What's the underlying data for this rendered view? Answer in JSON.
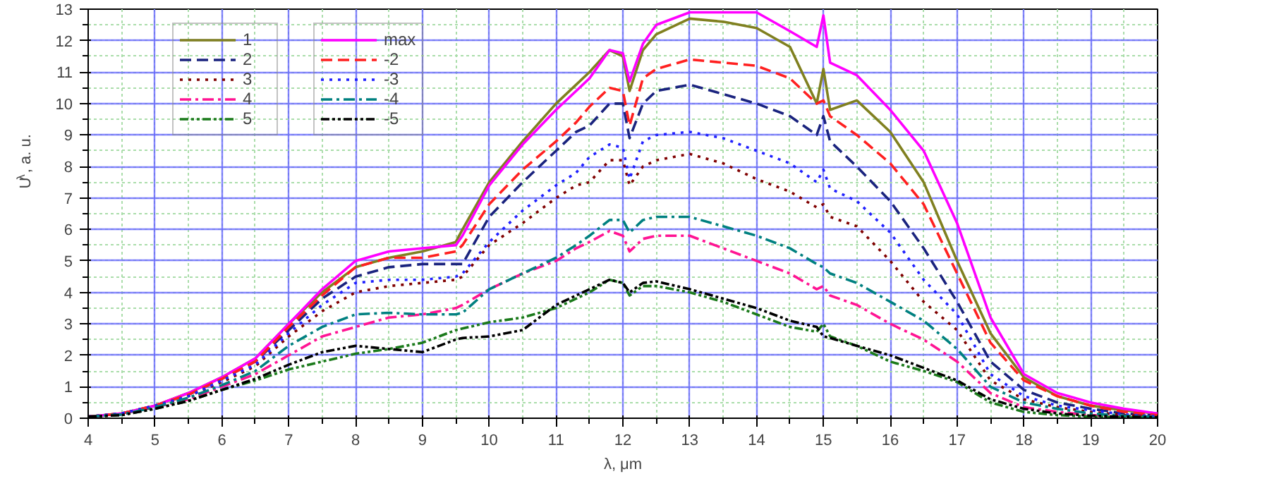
{
  "chart_data": {
    "type": "line",
    "xlabel": "λ, μm",
    "ylabel": "U$^{λ}$, a. u.",
    "x": [
      4,
      4.5,
      5,
      5.5,
      6,
      6.5,
      7,
      7.5,
      8,
      8.5,
      9,
      9.5,
      9.6,
      10,
      10.5,
      11,
      11.3,
      11.5,
      11.8,
      12,
      12.1,
      12.3,
      12.5,
      13,
      13.5,
      14,
      14.5,
      14.9,
      15,
      15.1,
      15.5,
      16,
      16.5,
      17,
      17.5,
      18,
      18.5,
      19,
      19.5,
      20
    ],
    "xlim": [
      4,
      20
    ],
    "ylim": [
      0,
      13
    ],
    "xticks": [
      4,
      5,
      6,
      7,
      8,
      9,
      10,
      11,
      12,
      13,
      14,
      15,
      16,
      17,
      18,
      19,
      20
    ],
    "yticks": [
      0,
      1,
      2,
      3,
      4,
      5,
      6,
      7,
      8,
      9,
      10,
      11,
      12,
      13
    ],
    "grid": true,
    "legend": "top left",
    "series": [
      {
        "name": "1",
        "color": "#808020",
        "line_style": "solid",
        "values": [
          0.05,
          0.15,
          0.4,
          0.8,
          1.3,
          1.9,
          3.0,
          4.0,
          4.8,
          5.1,
          5.3,
          5.6,
          6.0,
          7.5,
          8.8,
          10.0,
          10.6,
          11.0,
          11.7,
          11.5,
          10.4,
          11.7,
          12.2,
          12.7,
          12.6,
          12.4,
          11.8,
          10.0,
          11.1,
          9.8,
          10.1,
          9.1,
          7.5,
          5.0,
          2.7,
          1.3,
          0.7,
          0.4,
          0.25,
          0.15
        ]
      },
      {
        "name": "2",
        "color": "#1a237e",
        "line_style": "dashed",
        "values": [
          0.05,
          0.15,
          0.4,
          0.75,
          1.25,
          1.8,
          2.8,
          3.8,
          4.5,
          4.8,
          4.9,
          4.9,
          4.9,
          6.4,
          7.5,
          8.5,
          9.1,
          9.3,
          10.0,
          10.0,
          8.9,
          10.0,
          10.4,
          10.6,
          10.3,
          10.0,
          9.6,
          9.0,
          9.6,
          8.8,
          8.0,
          6.9,
          5.4,
          3.7,
          1.8,
          0.9,
          0.5,
          0.3,
          0.15,
          0.08
        ]
      },
      {
        "name": "3",
        "color": "#800000",
        "line_style": "dotted",
        "values": [
          0.05,
          0.15,
          0.35,
          0.7,
          1.15,
          1.65,
          2.6,
          3.4,
          4.0,
          4.2,
          4.3,
          4.4,
          4.5,
          5.5,
          6.2,
          7.0,
          7.4,
          7.5,
          8.2,
          8.2,
          7.4,
          8.0,
          8.2,
          8.4,
          8.1,
          7.6,
          7.2,
          6.7,
          6.8,
          6.4,
          6.1,
          5.0,
          3.7,
          2.8,
          1.2,
          0.6,
          0.35,
          0.2,
          0.1,
          0.05
        ]
      },
      {
        "name": "4",
        "color": "#ff1493",
        "line_style": "dashdot",
        "values": [
          0.05,
          0.12,
          0.35,
          0.6,
          1.0,
          1.4,
          2.0,
          2.6,
          2.9,
          3.2,
          3.3,
          3.5,
          3.6,
          4.1,
          4.6,
          5.0,
          5.4,
          5.6,
          5.95,
          5.8,
          5.3,
          5.7,
          5.8,
          5.8,
          5.4,
          5.0,
          4.6,
          4.1,
          4.2,
          3.9,
          3.6,
          3.0,
          2.5,
          1.8,
          0.8,
          0.35,
          0.2,
          0.1,
          0.05,
          0.03
        ]
      },
      {
        "name": "5",
        "color": "#1b7a1b",
        "line_style": "dashdotdot",
        "values": [
          0.05,
          0.1,
          0.3,
          0.55,
          0.9,
          1.2,
          1.55,
          1.8,
          2.05,
          2.2,
          2.4,
          2.8,
          2.85,
          3.05,
          3.2,
          3.5,
          3.8,
          4.0,
          4.4,
          4.3,
          3.9,
          4.2,
          4.2,
          4.0,
          3.7,
          3.3,
          2.9,
          2.75,
          3.0,
          2.6,
          2.3,
          1.8,
          1.5,
          1.15,
          0.5,
          0.2,
          0.1,
          0.05,
          0.03,
          0.02
        ]
      },
      {
        "name": "max",
        "color": "#ff00ff",
        "line_style": "solid",
        "values": [
          0.05,
          0.15,
          0.4,
          0.8,
          1.3,
          1.9,
          3.0,
          4.1,
          5.0,
          5.3,
          5.4,
          5.5,
          5.8,
          7.4,
          8.7,
          9.8,
          10.4,
          10.8,
          11.7,
          11.6,
          10.7,
          11.9,
          12.5,
          12.9,
          12.9,
          12.9,
          12.3,
          11.8,
          12.8,
          11.3,
          10.9,
          9.8,
          8.5,
          6.2,
          3.2,
          1.4,
          0.8,
          0.5,
          0.3,
          0.15
        ]
      },
      {
        "name": "-2",
        "color": "#ff2020",
        "line_style": "dashed",
        "values": [
          0.05,
          0.15,
          0.4,
          0.75,
          1.25,
          1.8,
          2.9,
          3.9,
          4.8,
          5.1,
          5.1,
          5.3,
          5.5,
          6.8,
          7.9,
          8.8,
          9.4,
          9.9,
          10.5,
          10.4,
          9.3,
          10.8,
          11.1,
          11.4,
          11.3,
          11.2,
          10.8,
          10.0,
          10.1,
          9.6,
          9.0,
          8.1,
          6.8,
          4.6,
          2.4,
          1.2,
          0.7,
          0.4,
          0.2,
          0.1
        ]
      },
      {
        "name": "-3",
        "color": "#2020ff",
        "line_style": "dotted",
        "values": [
          0.05,
          0.15,
          0.4,
          0.7,
          1.2,
          1.7,
          2.7,
          3.6,
          4.3,
          4.4,
          4.4,
          4.5,
          4.6,
          5.6,
          6.6,
          7.4,
          7.8,
          8.3,
          8.7,
          8.6,
          7.6,
          8.8,
          9.0,
          9.1,
          8.9,
          8.5,
          8.1,
          7.5,
          7.9,
          7.3,
          6.9,
          5.9,
          4.4,
          3.3,
          1.4,
          0.7,
          0.4,
          0.25,
          0.12,
          0.06
        ]
      },
      {
        "name": "-4",
        "color": "#008080",
        "line_style": "dashdot",
        "values": [
          0.05,
          0.12,
          0.35,
          0.65,
          1.05,
          1.5,
          2.3,
          2.9,
          3.3,
          3.35,
          3.3,
          3.3,
          3.35,
          4.1,
          4.6,
          5.1,
          5.5,
          5.8,
          6.3,
          6.3,
          5.9,
          6.3,
          6.4,
          6.4,
          6.1,
          5.8,
          5.4,
          4.9,
          4.8,
          4.6,
          4.3,
          3.7,
          3.1,
          2.2,
          1.0,
          0.5,
          0.3,
          0.15,
          0.08,
          0.04
        ]
      },
      {
        "name": "-5",
        "color": "#000000",
        "line_style": "dashdotdot",
        "values": [
          0.05,
          0.1,
          0.3,
          0.55,
          0.9,
          1.25,
          1.7,
          2.1,
          2.3,
          2.2,
          2.1,
          2.5,
          2.55,
          2.6,
          2.8,
          3.6,
          3.9,
          4.1,
          4.4,
          4.3,
          4.0,
          4.3,
          4.35,
          4.1,
          3.8,
          3.5,
          3.1,
          2.9,
          2.6,
          2.55,
          2.3,
          2.0,
          1.6,
          1.2,
          0.6,
          0.3,
          0.15,
          0.08,
          0.05,
          0.03
        ]
      }
    ]
  }
}
